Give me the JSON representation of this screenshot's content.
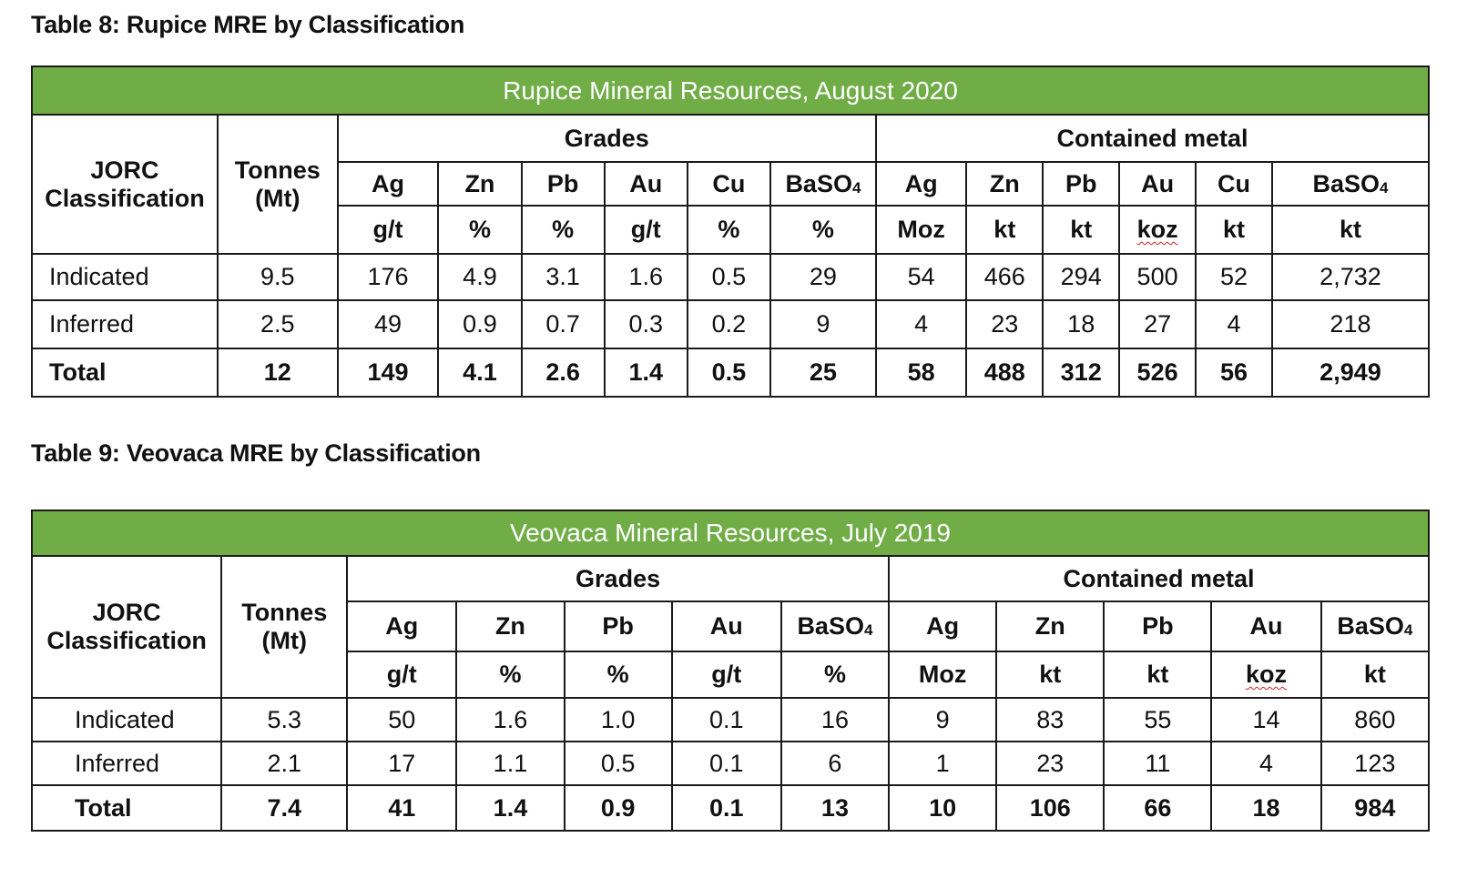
{
  "table8": {
    "caption": "Table 8: Rupice MRE by Classification",
    "banner": "Rupice Mineral Resources, August 2020",
    "header": {
      "classification": [
        "JORC",
        "Classification"
      ],
      "tonnes": [
        "Tonnes",
        "(Mt)"
      ],
      "grades_label": "Grades",
      "contained_label": "Contained metal",
      "grade_symbols": [
        "Ag",
        "Zn",
        "Pb",
        "Au",
        "Cu",
        "BaSO"
      ],
      "grade_units": [
        "g/t",
        "%",
        "%",
        "g/t",
        "%",
        "%"
      ],
      "metal_symbols": [
        "Ag",
        "Zn",
        "Pb",
        "Au",
        "Cu",
        "BaSO"
      ],
      "metal_units": [
        "Moz",
        "kt",
        "kt",
        "koz",
        "kt",
        "kt"
      ],
      "baso_subscript": "4"
    },
    "rows": [
      {
        "label": "Indicated",
        "tonnes": "9.5",
        "grades": [
          "176",
          "4.9",
          "3.1",
          "1.6",
          "0.5",
          "29"
        ],
        "metal": [
          "54",
          "466",
          "294",
          "500",
          "52",
          "2,732"
        ]
      },
      {
        "label": "Inferred",
        "tonnes": "2.5",
        "grades": [
          "49",
          "0.9",
          "0.7",
          "0.3",
          "0.2",
          "9"
        ],
        "metal": [
          "4",
          "23",
          "18",
          "27",
          "4",
          "218"
        ]
      },
      {
        "label": "Total",
        "tonnes": "12",
        "grades": [
          "149",
          "4.1",
          "2.6",
          "1.4",
          "0.5",
          "25"
        ],
        "metal": [
          "58",
          "488",
          "312",
          "526",
          "56",
          "2,949"
        ]
      }
    ]
  },
  "table9": {
    "caption": "Table 9: Veovaca MRE by Classification",
    "banner": "Veovaca Mineral Resources, July 2019",
    "header": {
      "classification": [
        "JORC",
        "Classification"
      ],
      "tonnes": [
        "Tonnes",
        "(Mt)"
      ],
      "grades_label": "Grades",
      "contained_label": "Contained metal",
      "grade_symbols": [
        "Ag",
        "Zn",
        "Pb",
        "Au",
        "BaSO"
      ],
      "grade_units": [
        "g/t",
        "%",
        "%",
        "g/t",
        "%"
      ],
      "metal_symbols": [
        "Ag",
        "Zn",
        "Pb",
        "Au",
        "BaSO"
      ],
      "metal_units": [
        "Moz",
        "kt",
        "kt",
        "koz",
        "kt"
      ],
      "baso_subscript": "4"
    },
    "rows": [
      {
        "label": "Indicated",
        "tonnes": "5.3",
        "grades": [
          "50",
          "1.6",
          "1.0",
          "0.1",
          "16"
        ],
        "metal": [
          "9",
          "83",
          "55",
          "14",
          "860"
        ]
      },
      {
        "label": "Inferred",
        "tonnes": "2.1",
        "grades": [
          "17",
          "1.1",
          "0.5",
          "0.1",
          "6"
        ],
        "metal": [
          "1",
          "23",
          "11",
          "4",
          "123"
        ]
      },
      {
        "label": "Total",
        "tonnes": "7.4",
        "grades": [
          "41",
          "1.4",
          "0.9",
          "0.1",
          "13"
        ],
        "metal": [
          "10",
          "106",
          "66",
          "18",
          "984"
        ]
      }
    ]
  }
}
